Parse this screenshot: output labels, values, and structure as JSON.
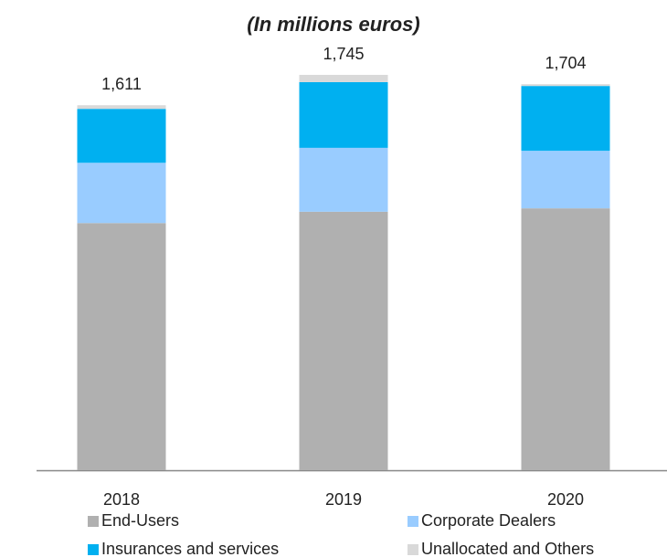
{
  "chart_data": {
    "type": "stacked-bar",
    "title": "(In millions euros)",
    "categories": [
      "2018",
      "2019",
      "2020"
    ],
    "series": [
      {
        "name": "End-Users",
        "color": "#b0b0b0",
        "values": [
          1091,
          1141,
          1156
        ]
      },
      {
        "name": "Corporate Dealers",
        "color": "#99ccff",
        "values": [
          266,
          282,
          254
        ]
      },
      {
        "name": "Insurances and services",
        "color": "#00b0f0",
        "values": [
          238,
          290,
          286
        ]
      },
      {
        "name": "Unallocated and Others",
        "color": "#d9d9d9",
        "values": [
          16,
          32,
          8
        ]
      }
    ],
    "totals": {
      "values": [
        1611,
        1745,
        1704
      ],
      "value_labels": [
        "1,611",
        "1,745",
        "1,704"
      ]
    }
  }
}
